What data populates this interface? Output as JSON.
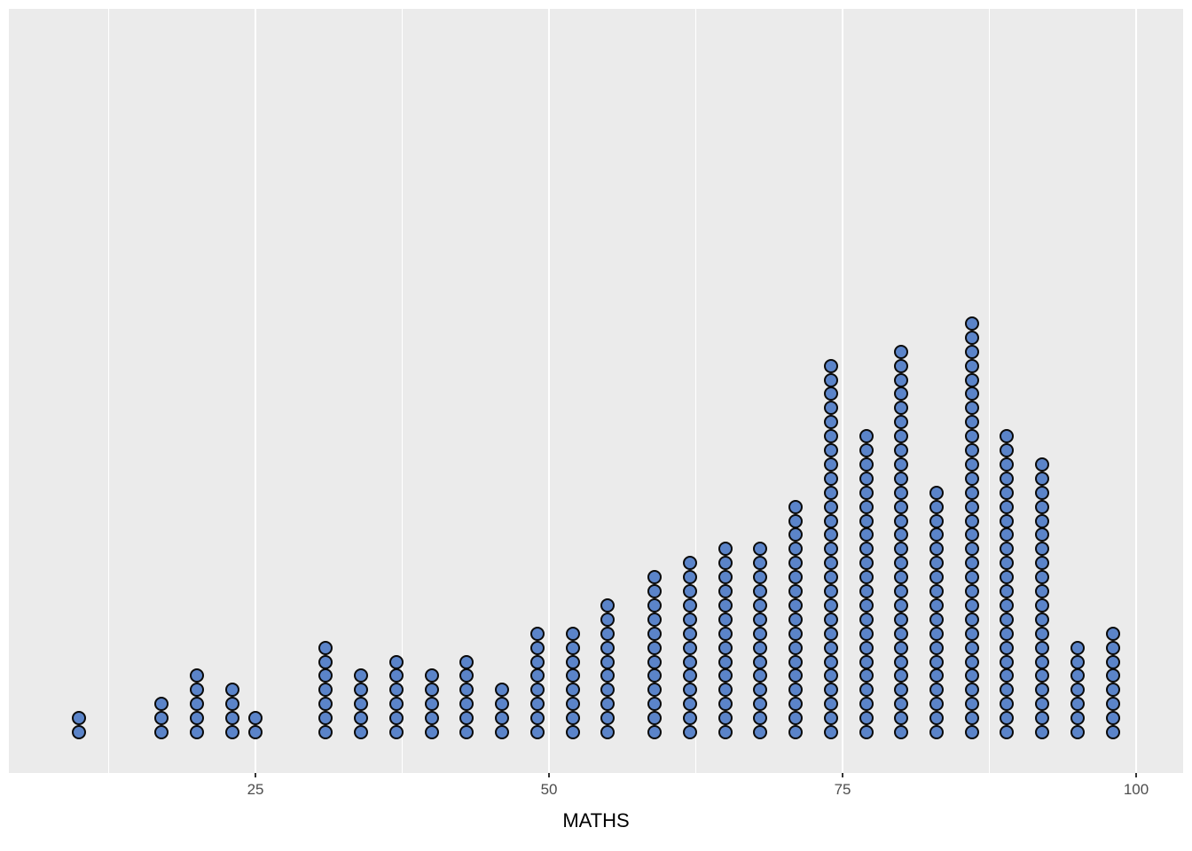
{
  "chart_data": {
    "type": "dotplot",
    "title": "",
    "xlabel": "MATHS",
    "ylabel": "",
    "legend": "none",
    "grid": "vertical white gridlines (major + minor) on gray panel, no y axis",
    "xlim": [
      4,
      104
    ],
    "x_ticks": [
      25,
      50,
      75,
      100
    ],
    "x_tick_labels": [
      "25",
      "50",
      "75",
      "100"
    ],
    "x_minor_gridlines": [
      12.5,
      37.5,
      62.5,
      87.5
    ],
    "x": [
      10,
      17,
      20,
      23,
      25,
      31,
      34,
      37,
      40,
      43,
      46,
      49,
      52,
      55,
      59,
      62,
      65,
      68,
      71,
      74,
      77,
      80,
      83,
      86,
      89,
      92,
      95,
      98
    ],
    "counts": [
      2,
      3,
      5,
      4,
      2,
      7,
      5,
      6,
      5,
      6,
      4,
      8,
      8,
      10,
      12,
      13,
      14,
      14,
      17,
      27,
      22,
      28,
      18,
      30,
      22,
      20,
      7,
      8
    ]
  },
  "style": {
    "page_bg": "#FFFFFF",
    "panel_bg": "#EBEBEB",
    "gridline_color": "#FFFFFF",
    "dot_fill": "#5B84C9",
    "dot_stroke": "#0A0A0A",
    "tick_color": "#333333",
    "tick_label_color": "#4D4D4D",
    "axis_title_color": "#000000"
  }
}
